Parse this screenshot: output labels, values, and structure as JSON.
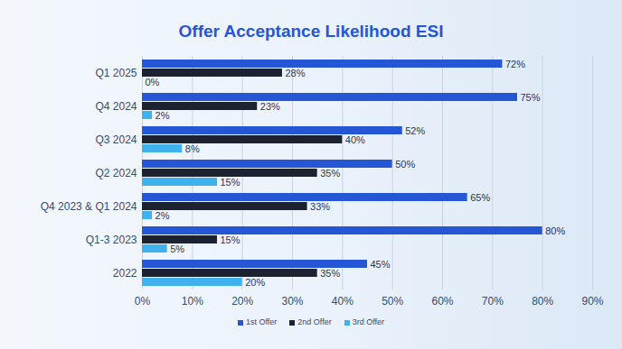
{
  "chart_data": {
    "type": "bar",
    "title": "Offer Acceptance Likelihood ESI",
    "orientation": "horizontal",
    "categories": [
      "Q1 2025",
      "Q4 2024",
      "Q3 2024",
      "Q2 2024",
      "Q4 2023 & Q1 2024",
      "Q1-3 2023",
      "2022"
    ],
    "series": [
      {
        "name": "1st Offer",
        "color": "#2456d6",
        "values": [
          72,
          75,
          52,
          50,
          65,
          80,
          45
        ],
        "value_labels": [
          "72%",
          "75%",
          "52%",
          "50%",
          "65%",
          "80%",
          "45%"
        ]
      },
      {
        "name": "2nd Offer",
        "color": "#1c2230",
        "values": [
          28,
          23,
          40,
          35,
          33,
          15,
          35
        ],
        "value_labels": [
          "28%",
          "23%",
          "40%",
          "35%",
          "33%",
          "15%",
          "35%"
        ]
      },
      {
        "name": "3rd Offer",
        "color": "#3fb2ee",
        "values": [
          0,
          2,
          8,
          15,
          2,
          5,
          20
        ],
        "value_labels": [
          "0%",
          "2%",
          "8%",
          "15%",
          "2%",
          "5%",
          "20%"
        ]
      }
    ],
    "xlim": [
      0,
      90
    ],
    "xticks": [
      {
        "value": 0,
        "label": "0%"
      },
      {
        "value": 10,
        "label": "10%"
      },
      {
        "value": 20,
        "label": "20%"
      },
      {
        "value": 30,
        "label": "30%"
      },
      {
        "value": 40,
        "label": "40%"
      },
      {
        "value": 50,
        "label": "50%"
      },
      {
        "value": 60,
        "label": "60%"
      },
      {
        "value": 70,
        "label": "70%"
      },
      {
        "value": 80,
        "label": "80%"
      },
      {
        "value": 90,
        "label": "90%"
      }
    ],
    "grid": true,
    "data_labels": true,
    "legend": "bottom"
  }
}
